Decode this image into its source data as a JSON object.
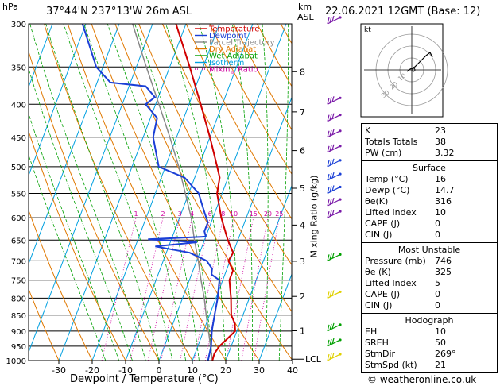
{
  "header": {
    "hpa_label": "hPa",
    "location": "37°44'N  237°13'W  26m  ASL",
    "km_label": "km",
    "asl_label": "ASL",
    "datetime": "22.06.2021  12GMT  (Base: 12)"
  },
  "footer": {
    "copyright": "© weatheronline.co.uk"
  },
  "chart_data": {
    "type": "line",
    "xlabel": "Dewpoint / Temperature (°C)",
    "ylabel_right": "Mixing Ratio (g/kg)",
    "pressure_levels": [
      300,
      350,
      400,
      450,
      500,
      550,
      600,
      650,
      700,
      750,
      800,
      850,
      900,
      950,
      1000
    ],
    "x_ticks": [
      -30,
      -20,
      -10,
      0,
      10,
      20,
      30,
      40
    ],
    "km_ticks": [
      {
        "km": "1",
        "p": 899
      },
      {
        "km": "2",
        "p": 795
      },
      {
        "km": "3",
        "p": 701
      },
      {
        "km": "4",
        "p": 616
      },
      {
        "km": "5",
        "p": 540
      },
      {
        "km": "6",
        "p": 472
      },
      {
        "km": "7",
        "p": 411
      },
      {
        "km": "8",
        "p": 356
      }
    ],
    "lcl_label": "LCL",
    "mixing_ratio_labels": [
      "1",
      "2",
      "3",
      "4",
      "6",
      "8",
      "10",
      "15",
      "20",
      "25"
    ],
    "mixing_ratio_values": [
      1,
      2,
      3,
      4,
      6,
      8,
      10,
      15,
      20,
      25
    ],
    "legend": [
      {
        "name": "Temperature",
        "color": "#d00000",
        "style": "solid"
      },
      {
        "name": "Dewpoint",
        "color": "#1a3fd6",
        "style": "solid"
      },
      {
        "name": "Parcel Trajectory",
        "color": "#888888",
        "style": "solid"
      },
      {
        "name": "Dry Adiabat",
        "color": "#e07800",
        "style": "solid"
      },
      {
        "name": "Wet Adiabat",
        "color": "#00a000",
        "style": "solid"
      },
      {
        "name": "Isotherm",
        "color": "#00a0e0",
        "style": "solid"
      },
      {
        "name": "Mixing Ratio",
        "color": "#d000a0",
        "style": "dotted"
      }
    ],
    "temperature": [
      {
        "p": 1000,
        "t": 16
      },
      {
        "p": 975,
        "t": 15.8
      },
      {
        "p": 950,
        "t": 16.5
      },
      {
        "p": 925,
        "t": 18
      },
      {
        "p": 900,
        "t": 19.5
      },
      {
        "p": 875,
        "t": 18.5
      },
      {
        "p": 850,
        "t": 16.5
      },
      {
        "p": 800,
        "t": 14.5
      },
      {
        "p": 750,
        "t": 12
      },
      {
        "p": 725,
        "t": 12
      },
      {
        "p": 700,
        "t": 9.5
      },
      {
        "p": 680,
        "t": 10
      },
      {
        "p": 650,
        "t": 7
      },
      {
        "p": 600,
        "t": 2.5
      },
      {
        "p": 550,
        "t": -1.5
      },
      {
        "p": 520,
        "t": -2.5
      },
      {
        "p": 500,
        "t": -4.5
      },
      {
        "p": 450,
        "t": -10
      },
      {
        "p": 400,
        "t": -16.5
      },
      {
        "p": 350,
        "t": -24
      },
      {
        "p": 300,
        "t": -33
      }
    ],
    "dewpoint": [
      {
        "p": 1000,
        "t": 14.7
      },
      {
        "p": 950,
        "t": 14
      },
      {
        "p": 900,
        "t": 12.5
      },
      {
        "p": 850,
        "t": 11.5
      },
      {
        "p": 800,
        "t": 10.5
      },
      {
        "p": 750,
        "t": 9
      },
      {
        "p": 735,
        "t": 6
      },
      {
        "p": 720,
        "t": 5.5
      },
      {
        "p": 700,
        "t": 3
      },
      {
        "p": 680,
        "t": -3
      },
      {
        "p": 665,
        "t": -14
      },
      {
        "p": 655,
        "t": -2
      },
      {
        "p": 648,
        "t": -17
      },
      {
        "p": 642,
        "t": 0
      },
      {
        "p": 630,
        "t": -1
      },
      {
        "p": 610,
        "t": -1
      },
      {
        "p": 590,
        "t": -3
      },
      {
        "p": 570,
        "t": -5
      },
      {
        "p": 550,
        "t": -7
      },
      {
        "p": 520,
        "t": -13
      },
      {
        "p": 500,
        "t": -22
      },
      {
        "p": 450,
        "t": -27
      },
      {
        "p": 420,
        "t": -28
      },
      {
        "p": 400,
        "t": -33
      },
      {
        "p": 390,
        "t": -31
      },
      {
        "p": 375,
        "t": -35
      },
      {
        "p": 370,
        "t": -46
      },
      {
        "p": 350,
        "t": -52
      },
      {
        "p": 300,
        "t": -61
      }
    ],
    "parcel": [
      {
        "p": 1000,
        "t": 16
      },
      {
        "p": 970,
        "t": 14.7
      },
      {
        "p": 900,
        "t": 11.5
      },
      {
        "p": 850,
        "t": 9
      },
      {
        "p": 800,
        "t": 6.5
      },
      {
        "p": 750,
        "t": 3.5
      },
      {
        "p": 700,
        "t": 0.5
      },
      {
        "p": 650,
        "t": -3
      },
      {
        "p": 600,
        "t": -6.5
      },
      {
        "p": 550,
        "t": -11
      },
      {
        "p": 500,
        "t": -16
      },
      {
        "p": 450,
        "t": -22
      },
      {
        "p": 400,
        "t": -29
      },
      {
        "p": 350,
        "t": -37
      },
      {
        "p": 300,
        "t": -46
      }
    ],
    "wind_barbs": [
      {
        "p": 300,
        "color": "#7a1aa8"
      },
      {
        "p": 400,
        "color": "#7a1aa8"
      },
      {
        "p": 425,
        "color": "#7a1aa8"
      },
      {
        "p": 450,
        "color": "#7a1aa8"
      },
      {
        "p": 475,
        "color": "#7a1aa8"
      },
      {
        "p": 500,
        "color": "#1a3fd6"
      },
      {
        "p": 525,
        "color": "#1a3fd6"
      },
      {
        "p": 550,
        "color": "#1a3fd6"
      },
      {
        "p": 575,
        "color": "#7a1aa8"
      },
      {
        "p": 600,
        "color": "#7a1aa8"
      },
      {
        "p": 700,
        "color": "#00a000"
      },
      {
        "p": 800,
        "color": "#e0d000"
      },
      {
        "p": 900,
        "color": "#00a000"
      },
      {
        "p": 950,
        "color": "#00a000"
      },
      {
        "p": 1000,
        "color": "#e0d000"
      }
    ]
  },
  "hodograph": {
    "label": "kt",
    "ring_labels": [
      "10",
      "20",
      "30"
    ]
  },
  "indices": {
    "rows": [
      {
        "key": "K",
        "value": "23"
      },
      {
        "key": "Totals Totals",
        "value": "38"
      },
      {
        "key": "PW (cm)",
        "value": "3.32"
      }
    ]
  },
  "surface": {
    "title": "Surface",
    "rows": [
      {
        "key": "Temp (°C)",
        "value": "16"
      },
      {
        "key": "Dewp (°C)",
        "value": "14.7"
      },
      {
        "key": "θe(K)",
        "value": "316"
      },
      {
        "key": "Lifted Index",
        "value": "10"
      },
      {
        "key": "CAPE (J)",
        "value": "0"
      },
      {
        "key": "CIN (J)",
        "value": "0"
      }
    ]
  },
  "unstable": {
    "title": "Most Unstable",
    "rows": [
      {
        "key": "Pressure (mb)",
        "value": "746"
      },
      {
        "key": "θe (K)",
        "value": "325"
      },
      {
        "key": "Lifted Index",
        "value": "5"
      },
      {
        "key": "CAPE (J)",
        "value": "0"
      },
      {
        "key": "CIN (J)",
        "value": "0"
      }
    ]
  },
  "hodo_stats": {
    "title": "Hodograph",
    "rows": [
      {
        "key": "EH",
        "value": "10"
      },
      {
        "key": "SREH",
        "value": "50"
      },
      {
        "key": "StmDir",
        "value": "269°"
      },
      {
        "key": "StmSpd (kt)",
        "value": "21"
      }
    ]
  }
}
